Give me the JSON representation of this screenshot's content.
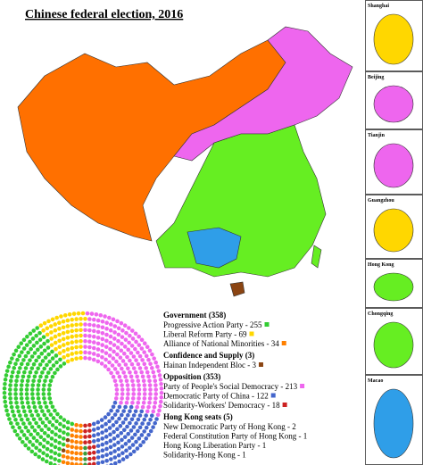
{
  "title": "Chinese federal election, 2016",
  "insets": [
    {
      "label": "Shanghai"
    },
    {
      "label": "Beijing"
    },
    {
      "label": "Tianjin"
    },
    {
      "label": "Guangzhou"
    },
    {
      "label": "Hong Kong"
    },
    {
      "label": "Chongqing"
    },
    {
      "label": "Macao"
    }
  ],
  "legend": {
    "groups": [
      {
        "heading": "Government (358)",
        "parties": [
          {
            "label": "Progressive Action Party - 255",
            "seats": 255,
            "color": "#33cc33"
          },
          {
            "label": "Liberal Reform Party - 69",
            "seats": 69,
            "color": "#ffd700"
          },
          {
            "label": "Alliance of National Minorities - 34",
            "seats": 34,
            "color": "#ff8000"
          }
        ]
      },
      {
        "heading": "Confidence and Supply (3)",
        "parties": [
          {
            "label": "Hainan Independent Bloc - 3",
            "seats": 3,
            "color": "#8b4513"
          }
        ]
      },
      {
        "heading": "Opposition (353)",
        "parties": [
          {
            "label": "Party of People's Social Democracy - 213",
            "seats": 213,
            "color": "#ee66ee"
          },
          {
            "label": "Democratic Party of China - 122",
            "seats": 122,
            "color": "#4466cc"
          },
          {
            "label": "Solidarity-Workers' Democracy - 18",
            "seats": 18,
            "color": "#cc2222"
          }
        ]
      },
      {
        "heading": "Hong Kong seats (5)",
        "parties": [
          {
            "label": "New Democratic Party of Hong Kong - 2",
            "seats": 2
          },
          {
            "label": "Federal Constitution Party of Hong Kong - 1",
            "seats": 1
          },
          {
            "label": "Hong Kong Liberation Party - 1",
            "seats": 1
          },
          {
            "label": "Solidarity-Hong Kong - 1",
            "seats": 1
          }
        ]
      }
    ]
  }
}
